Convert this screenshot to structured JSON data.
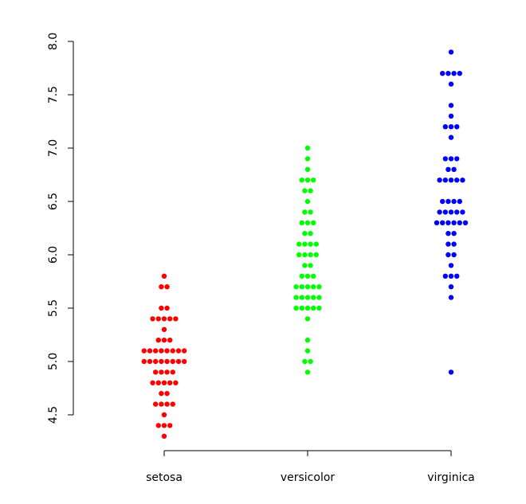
{
  "chart_data": {
    "type": "scatter",
    "subtype": "beeswarm",
    "title": "",
    "xlabel": "",
    "ylabel": "",
    "ylim": [
      4.3,
      7.9
    ],
    "y_ticks": [
      "4.5",
      "5.0",
      "5.5",
      "6.0",
      "6.5",
      "7.0",
      "7.5",
      "8.0"
    ],
    "categories": [
      "setosa",
      "versicolor",
      "virginica"
    ],
    "series": [
      {
        "category": "setosa",
        "color": "#ff0000",
        "values": [
          5.1,
          4.9,
          4.7,
          4.6,
          5.0,
          5.4,
          4.6,
          5.0,
          4.4,
          4.9,
          5.4,
          4.8,
          4.8,
          4.3,
          5.8,
          5.7,
          5.4,
          5.1,
          5.7,
          5.1,
          5.4,
          5.1,
          4.6,
          5.1,
          4.8,
          5.0,
          5.0,
          5.2,
          5.2,
          4.7,
          4.8,
          5.4,
          5.2,
          5.5,
          4.9,
          5.0,
          5.5,
          4.9,
          4.4,
          5.1,
          5.0,
          4.5,
          4.4,
          5.0,
          5.1,
          4.8,
          5.1,
          4.6,
          5.3,
          5.0
        ]
      },
      {
        "category": "versicolor",
        "color": "#00ff00",
        "values": [
          7.0,
          6.4,
          6.9,
          5.5,
          6.5,
          5.7,
          6.3,
          4.9,
          6.6,
          5.2,
          5.0,
          5.9,
          6.0,
          6.1,
          5.6,
          6.7,
          5.6,
          5.8,
          6.2,
          5.6,
          5.9,
          6.1,
          6.3,
          6.1,
          6.4,
          6.6,
          6.8,
          6.7,
          6.0,
          5.7,
          5.5,
          5.5,
          5.8,
          6.0,
          5.4,
          6.0,
          6.7,
          6.3,
          5.6,
          5.5,
          5.5,
          6.1,
          5.8,
          5.0,
          5.6,
          5.7,
          5.7,
          6.2,
          5.1,
          5.7
        ]
      },
      {
        "category": "virginica",
        "color": "#0000ff",
        "values": [
          6.3,
          5.8,
          7.1,
          6.3,
          6.5,
          7.6,
          4.9,
          7.3,
          6.7,
          7.2,
          6.5,
          6.4,
          6.8,
          5.7,
          5.8,
          6.4,
          6.5,
          7.7,
          7.7,
          6.0,
          6.9,
          5.6,
          7.7,
          6.3,
          6.7,
          7.2,
          6.2,
          6.1,
          6.4,
          7.2,
          7.4,
          7.9,
          6.4,
          6.3,
          6.1,
          7.7,
          6.3,
          6.4,
          6.0,
          6.9,
          6.7,
          6.9,
          5.8,
          6.8,
          6.7,
          6.7,
          6.3,
          6.5,
          6.2,
          5.9
        ]
      }
    ],
    "grid": false,
    "legend": "none"
  }
}
